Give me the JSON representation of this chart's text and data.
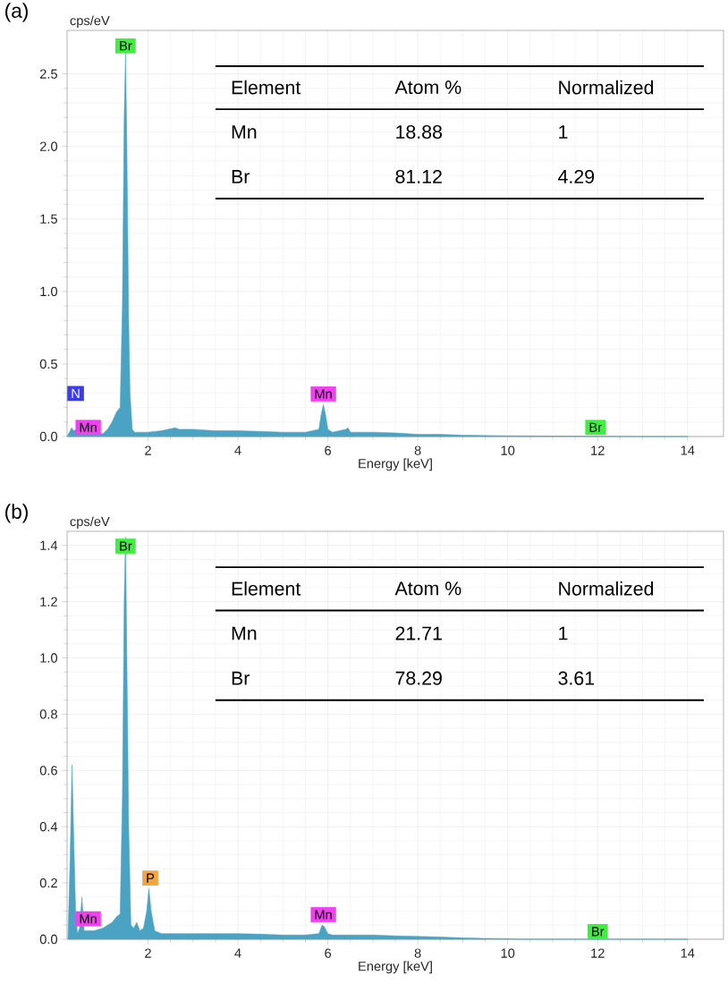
{
  "chart_data": [
    {
      "type": "area",
      "title": "(a)",
      "xlabel": "Energy [keV]",
      "ylabel": "cps/eV",
      "grid": true,
      "color": "#4ba3c3",
      "x": [
        0.2,
        0.25,
        0.3,
        0.35,
        0.4,
        0.45,
        0.5,
        0.6,
        0.8,
        1.0,
        1.1,
        1.2,
        1.3,
        1.38,
        1.43,
        1.47,
        1.5,
        1.53,
        1.57,
        1.6,
        1.65,
        1.7,
        2.0,
        2.3,
        2.6,
        2.7,
        3.0,
        3.5,
        4.0,
        4.5,
        5.0,
        5.5,
        5.8,
        5.85,
        5.9,
        5.95,
        6.0,
        6.1,
        6.4,
        6.45,
        6.5,
        7.0,
        7.5,
        8.0,
        8.5,
        9.0,
        10.0,
        11.0,
        12.0,
        13.0,
        14.0
      ],
      "values": [
        0,
        0.03,
        0.06,
        0.04,
        0.05,
        0.02,
        null,
        null,
        null,
        0.02,
        0.05,
        0.1,
        0.17,
        0.2,
        0.9,
        2.2,
        2.65,
        2.0,
        0.8,
        0.3,
        0.05,
        0.03,
        0.03,
        0.04,
        0.06,
        0.05,
        0.05,
        0.04,
        0.04,
        0.035,
        0.03,
        0.03,
        0.05,
        0.15,
        0.22,
        0.15,
        0.05,
        0.03,
        0.05,
        0.06,
        0.03,
        0.03,
        0.025,
        0.015,
        0.015,
        0.01,
        0.005,
        0.003,
        0.002,
        0,
        0
      ],
      "xlim": [
        0.2,
        14.8
      ],
      "ylim": [
        0,
        2.8
      ],
      "xticks": [
        2,
        4,
        6,
        8,
        10,
        12,
        14
      ],
      "yticks": [
        {
          "value": 0,
          "label": "0.0"
        },
        {
          "value": 0.5,
          "label": "0.5"
        },
        {
          "value": 1,
          "label": "1.0"
        },
        {
          "value": 1.5,
          "label": "1.5"
        },
        {
          "value": 2,
          "label": "2.0"
        },
        {
          "value": 2.5,
          "label": "2.5"
        }
      ],
      "annotations": [
        "Element",
        "Atom %",
        "Normalized",
        "Mn",
        "18.88",
        "1",
        "Br",
        "81.12",
        "4.29",
        "N",
        {
          "text": "Br",
          "x": 1.5,
          "y": 2.64
        },
        {
          "text": "Mn",
          "x": 0.67,
          "y": 0.01
        },
        {
          "text": "Mn",
          "x": 5.9,
          "y": 0.24
        },
        {
          "text": "Br",
          "x": 11.95,
          "y": 0.01
        }
      ]
    },
    {
      "type": "area",
      "title": "(b)",
      "xlabel": "Energy [keV]",
      "ylabel": "cps/eV",
      "grid": true,
      "color": "#4ba3c3",
      "x": [
        0.22,
        0.27,
        0.31,
        0.35,
        0.39,
        0.43,
        0.48,
        0.53,
        0.58,
        0.65,
        0.8,
        1.0,
        1.1,
        1.2,
        1.3,
        1.38,
        1.43,
        1.47,
        1.5,
        1.53,
        1.57,
        1.62,
        1.68,
        1.75,
        1.82,
        1.9,
        1.97,
        2.02,
        2.07,
        2.15,
        2.3,
        2.6,
        3.0,
        3.5,
        4.0,
        4.5,
        5.0,
        5.5,
        5.8,
        5.87,
        5.92,
        6.0,
        6.1,
        6.5,
        7.0,
        7.5,
        8.0,
        8.5,
        9.0,
        9.5,
        10.0,
        10.3,
        11.0,
        12.0,
        13.0,
        14.0
      ],
      "values": [
        0,
        0.3,
        0.62,
        0.35,
        0.1,
        0.02,
        0.04,
        0.15,
        0.03,
        0.03,
        0.03,
        0.04,
        0.05,
        0.06,
        0.08,
        0.09,
        0.5,
        1.2,
        1.43,
        1.0,
        0.4,
        0.05,
        0.04,
        0.06,
        0.03,
        0.04,
        0.1,
        0.18,
        0.1,
        0.03,
        0.02,
        0.02,
        0.02,
        0.02,
        0.02,
        0.018,
        0.015,
        0.015,
        0.02,
        0.05,
        0.045,
        0.02,
        0.015,
        0.015,
        0.015,
        0.012,
        0.01,
        0.008,
        0.005,
        0.003,
        0.002,
        0,
        0,
        0,
        0,
        0
      ],
      "xlim": [
        0.2,
        14.8
      ],
      "ylim": [
        0,
        1.45
      ],
      "xticks": [
        2,
        4,
        6,
        8,
        10,
        12,
        14
      ],
      "yticks": [
        {
          "value": 0,
          "label": "0.0"
        },
        {
          "value": 0.2,
          "label": "0.2"
        },
        {
          "value": 0.4,
          "label": "0.4"
        },
        {
          "value": 0.6,
          "label": "0.6"
        },
        {
          "value": 0.8,
          "label": "0.8"
        },
        {
          "value": 1,
          "label": "1.0"
        },
        {
          "value": 1.2,
          "label": "1.2"
        },
        {
          "value": 1.4,
          "label": "1.4"
        }
      ],
      "annotations": [
        "Element",
        "Atom %",
        "Normalized",
        "Mn",
        "21.71",
        "1",
        "Br",
        "78.29",
        "3.61",
        {
          "text": "Br",
          "x": 1.5,
          "y": 1.37
        },
        {
          "text": "P",
          "x": 2.05,
          "y": 0.19
        },
        {
          "text": "Mn",
          "x": 0.67,
          "y": 0.045
        },
        {
          "text": "Mn",
          "x": 5.9,
          "y": 0.06
        },
        {
          "text": "Br",
          "x": 12.0,
          "y": 0
        }
      ]
    }
  ]
}
